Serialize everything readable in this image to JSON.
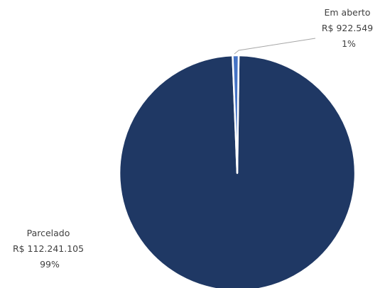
{
  "chart_data": {
    "type": "pie",
    "slices": [
      {
        "name": "Parcelado",
        "value": 112241105,
        "value_label": "R$ 112.241.105",
        "percent_label": "99%",
        "color": "#1f3864"
      },
      {
        "name": "Em aberto",
        "value": 922549,
        "value_label": "R$ 922.549",
        "percent_label": "1%",
        "color": "#4472c4"
      }
    ],
    "slice_border_color": "#ffffff",
    "leader_line_color": "#a6a6a6"
  }
}
